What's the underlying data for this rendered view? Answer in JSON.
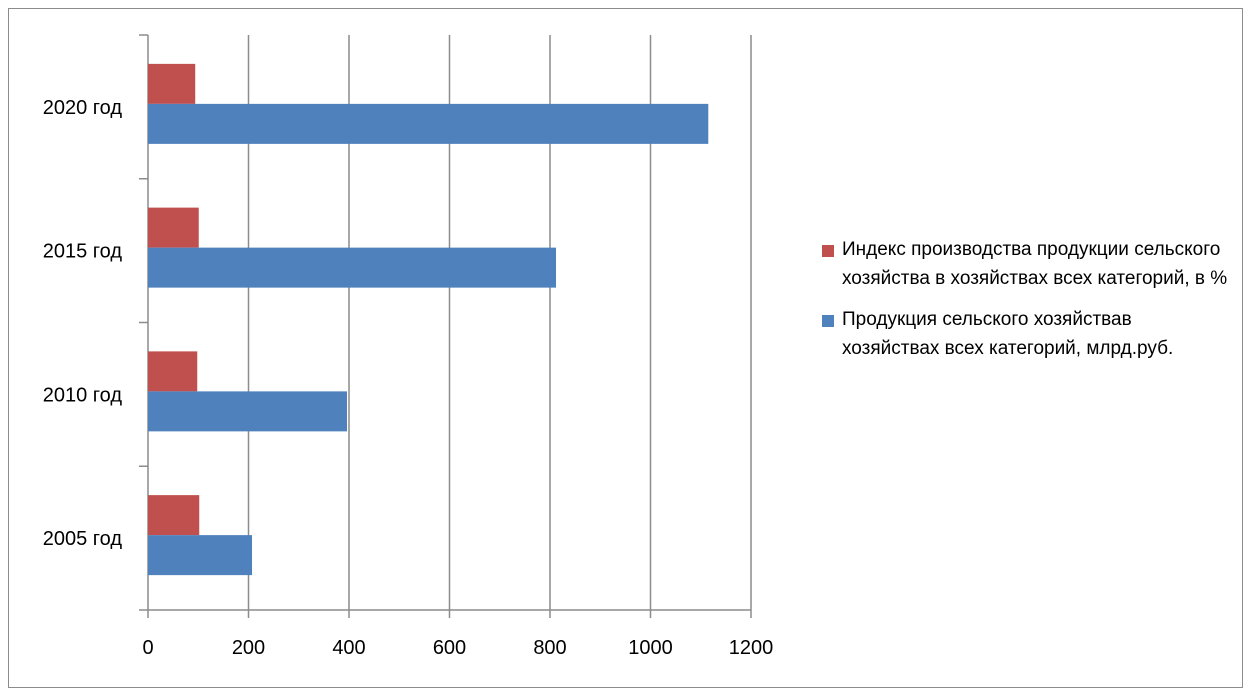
{
  "chart_data": {
    "type": "bar",
    "orientation": "horizontal",
    "categories": [
      "2005 год",
      "2010 год",
      "2015 год",
      "2020 год"
    ],
    "series": [
      {
        "name": "Индекс производства продукции сельского хозяйства в хозяйствах всех категорий, в %",
        "color": "#c0504d",
        "values": [
          102,
          98,
          101,
          94
        ]
      },
      {
        "name": "Продукция сельского хозяйствав хозяйствах всех категорий, млрд.руб.",
        "color": "#4f81bd",
        "values": [
          207,
          396,
          812,
          1115
        ]
      }
    ],
    "xlim": [
      0,
      1200
    ],
    "xticks": [
      "0",
      "200",
      "400",
      "600",
      "800",
      "1000",
      "1200"
    ],
    "grid": "vertical",
    "legend_position": "right"
  }
}
